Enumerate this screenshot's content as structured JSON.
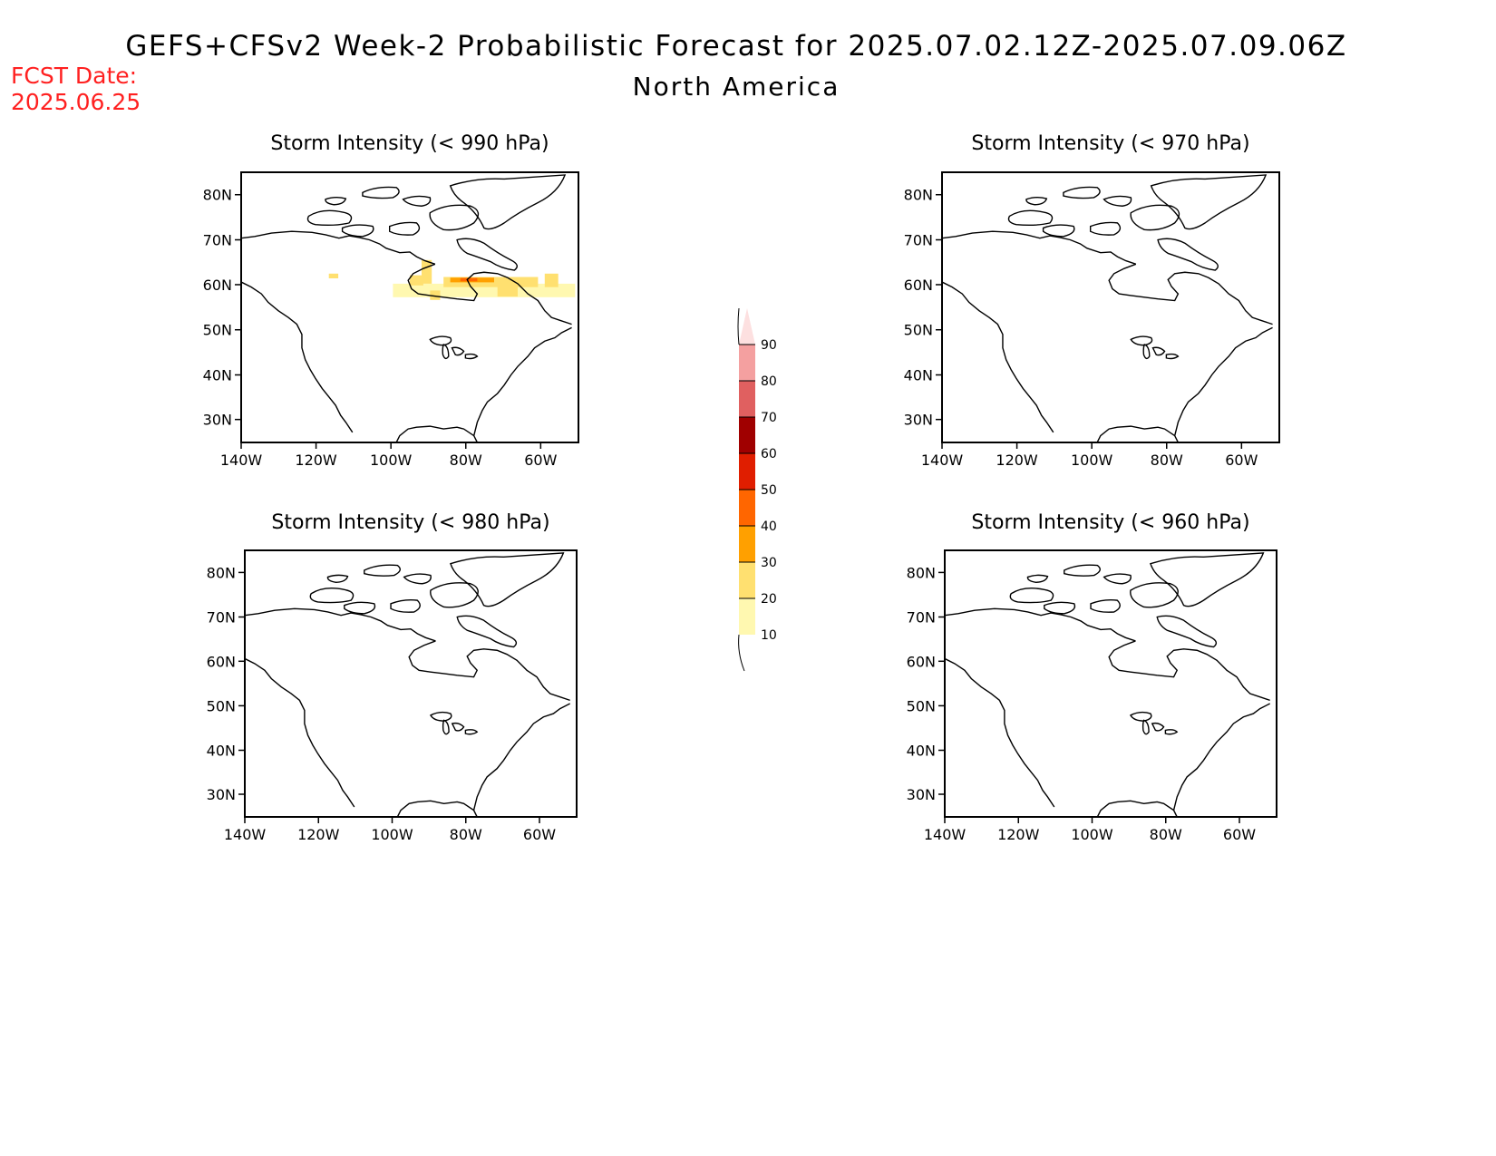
{
  "header": {
    "title": "GEFS+CFSv2 Week-2 Probabilistic Forecast for 2025.07.02.12Z-2025.07.09.06Z",
    "subtitle": "North America",
    "fcst_label": "FCST Date:",
    "fcst_date": "2025.06.25",
    "fcst_color": "#ff2020"
  },
  "map_axes": {
    "lat_labels": [
      "80N",
      "70N",
      "60N",
      "50N",
      "40N",
      "30N"
    ],
    "lon_labels": [
      "140W",
      "120W",
      "100W",
      "80W",
      "60W"
    ]
  },
  "panels": [
    {
      "title": "Storm Intensity (< 990 hPa)",
      "has_shading": true
    },
    {
      "title": "Storm Intensity (< 970 hPa)",
      "has_shading": false
    },
    {
      "title": "Storm Intensity (< 980 hPa)",
      "has_shading": false
    },
    {
      "title": "Storm Intensity (< 960 hPa)",
      "has_shading": false
    }
  ],
  "colorbar": {
    "labels": [
      "90",
      "80",
      "70",
      "60",
      "50",
      "40",
      "30",
      "20",
      "10"
    ],
    "colors": [
      "#fde0e0",
      "#f4a0a0",
      "#e06060",
      "#a00000",
      "#e01e00",
      "#ff6600",
      "#ffa000",
      "#ffe070",
      "#fff8b0"
    ]
  },
  "shading_levels": {
    "light": "#fff8b0",
    "medium": "#ffe070",
    "orange": "#ffa000",
    "dark_orange": "#ff6600"
  }
}
